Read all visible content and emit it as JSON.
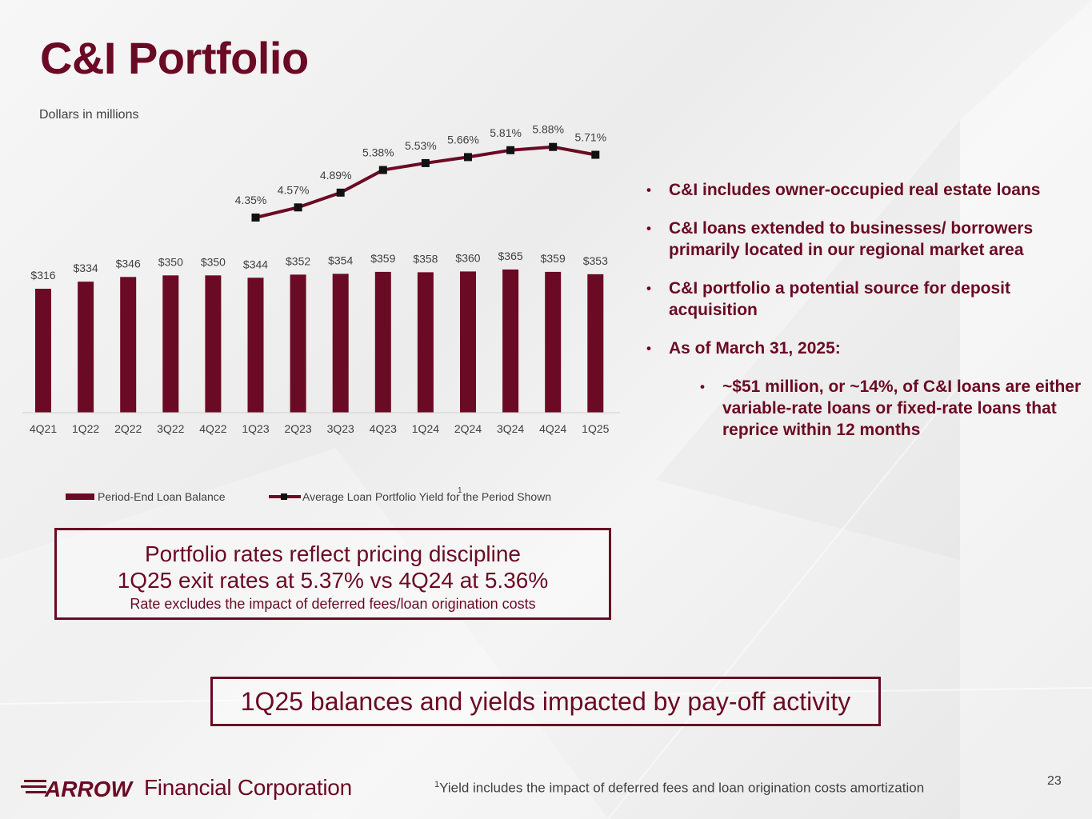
{
  "title": "C&I Portfolio",
  "subtitle": "Dollars in millions",
  "colors": {
    "brand": "#6b0a24",
    "gray_text": "#404040"
  },
  "chart_data": {
    "type": "bar",
    "categories": [
      "4Q21",
      "1Q22",
      "2Q22",
      "3Q22",
      "4Q22",
      "1Q23",
      "2Q23",
      "3Q23",
      "4Q23",
      "1Q24",
      "2Q24",
      "3Q24",
      "4Q24",
      "1Q25"
    ],
    "series": [
      {
        "name": "Period-End Loan Balance",
        "type": "bar",
        "values": [
          316,
          334,
          346,
          350,
          350,
          344,
          352,
          354,
          359,
          358,
          360,
          365,
          359,
          353
        ],
        "labels": [
          "$316",
          "$334",
          "$346",
          "$350",
          "$350",
          "$344",
          "$352",
          "$354",
          "$359",
          "$358",
          "$360",
          "$365",
          "$359",
          "$353"
        ],
        "color": "#6b0a24"
      },
      {
        "name": "Average Loan Portfolio Yield for the Period Shown",
        "name_superscript": "1",
        "type": "line",
        "values": [
          null,
          null,
          null,
          null,
          null,
          4.35,
          4.57,
          4.89,
          5.38,
          5.53,
          5.66,
          5.81,
          5.88,
          5.71
        ],
        "labels": [
          null,
          null,
          null,
          null,
          null,
          "4.35%",
          "4.57%",
          "4.89%",
          "5.38%",
          "5.53%",
          "5.66%",
          "5.81%",
          "5.88%",
          "5.71%"
        ],
        "color": "#6b0a24"
      }
    ],
    "legend_position": "bottom",
    "grid": false
  },
  "bullets": [
    {
      "text": "C&I includes owner-occupied real estate loans",
      "level": 1
    },
    {
      "text": "C&I loans extended to businesses/ borrowers primarily located in our regional market area",
      "level": 1
    },
    {
      "text": "C&I portfolio a potential source for deposit acquisition",
      "level": 1
    },
    {
      "text": "As of March 31, 2025:",
      "level": 1
    },
    {
      "text": "~$51 million, or ~14%,  of C&I loans are either variable-rate loans or fixed-rate loans that reprice within 12 months",
      "level": 2
    }
  ],
  "callout": {
    "line1": "Portfolio rates reflect pricing discipline",
    "line2": "1Q25 exit rates at 5.37% vs 4Q24 at 5.36%",
    "line3": "Rate excludes the impact of deferred fees/loan origination costs"
  },
  "banner": "1Q25 balances and yields impacted by pay-off activity",
  "logo": {
    "text": "Financial Corporation",
    "wordmark": "ARROW"
  },
  "footnote": {
    "marker": "1",
    "text": "Yield includes the impact of deferred fees and loan origination costs amortization"
  },
  "page_number": "23"
}
